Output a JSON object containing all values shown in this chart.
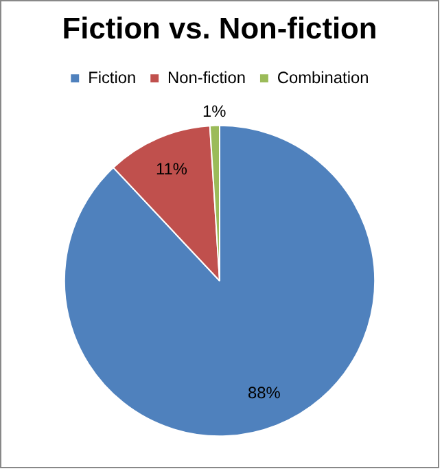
{
  "chart_data": {
    "type": "pie",
    "title": "Fiction vs. Non-fiction",
    "categories": [
      "Fiction",
      "Non-fiction",
      "Combination"
    ],
    "values": [
      88,
      11,
      1
    ],
    "colors": [
      "#4f81bd",
      "#c0504d",
      "#9bbb59"
    ],
    "value_labels": [
      "88%",
      "11%",
      "1%"
    ],
    "legend": "top"
  }
}
